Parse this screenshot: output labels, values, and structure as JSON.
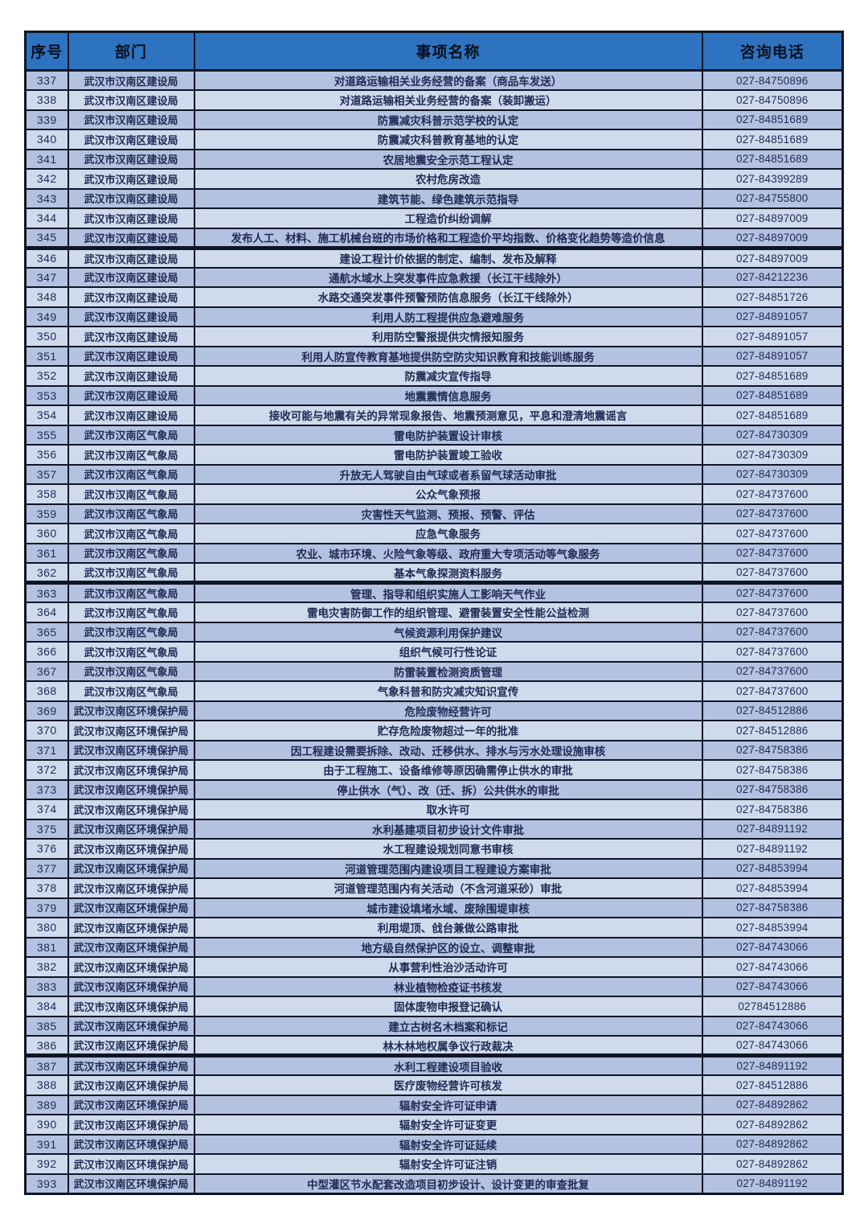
{
  "colors": {
    "header_bg": "#2e73c0",
    "header_text": "#0a0f1e",
    "row_odd": "#b4c2e1",
    "row_even": "#cfdaed",
    "border": "#0e1626",
    "cell_text": "#1e2a52"
  },
  "table": {
    "columns": [
      "序号",
      "部门",
      "事项名称",
      "咨询电话"
    ],
    "thick_border_after": [
      "345",
      "362",
      "386"
    ],
    "rows": [
      {
        "no": "337",
        "dept": "武汉市汉南区建设局",
        "item": "对道路运输相关业务经营的备案（商品车发送）",
        "phone": "027-84750896"
      },
      {
        "no": "338",
        "dept": "武汉市汉南区建设局",
        "item": "对道路运输相关业务经营的备案（装卸搬运）",
        "phone": "027-84750896"
      },
      {
        "no": "339",
        "dept": "武汉市汉南区建设局",
        "item": "防震减灾科普示范学校的认定",
        "phone": "027-84851689"
      },
      {
        "no": "340",
        "dept": "武汉市汉南区建设局",
        "item": "防震减灾科普教育基地的认定",
        "phone": "027-84851689"
      },
      {
        "no": "341",
        "dept": "武汉市汉南区建设局",
        "item": "农居地震安全示范工程认定",
        "phone": "027-84851689"
      },
      {
        "no": "342",
        "dept": "武汉市汉南区建设局",
        "item": "农村危房改造",
        "phone": "027-84399289"
      },
      {
        "no": "343",
        "dept": "武汉市汉南区建设局",
        "item": "建筑节能、绿色建筑示范指导",
        "phone": "027-84755800"
      },
      {
        "no": "344",
        "dept": "武汉市汉南区建设局",
        "item": "工程造价纠纷调解",
        "phone": "027-84897009"
      },
      {
        "no": "345",
        "dept": "武汉市汉南区建设局",
        "item": "发布人工、材料、施工机械台班的市场价格和工程造价平均指数、价格变化趋势等造价信息",
        "phone": "027-84897009"
      },
      {
        "no": "346",
        "dept": "武汉市汉南区建设局",
        "item": "建设工程计价依据的制定、编制、发布及解释",
        "phone": "027-84897009"
      },
      {
        "no": "347",
        "dept": "武汉市汉南区建设局",
        "item": "通航水域水上突发事件应急救援（长江干线除外）",
        "phone": "027-84212236"
      },
      {
        "no": "348",
        "dept": "武汉市汉南区建设局",
        "item": "水路交通突发事件预警预防信息服务（长江干线除外）",
        "phone": "027-84851726"
      },
      {
        "no": "349",
        "dept": "武汉市汉南区建设局",
        "item": "利用人防工程提供应急避难服务",
        "phone": "027-84891057"
      },
      {
        "no": "350",
        "dept": "武汉市汉南区建设局",
        "item": "利用防空警报提供灾情报知服务",
        "phone": "027-84891057"
      },
      {
        "no": "351",
        "dept": "武汉市汉南区建设局",
        "item": "利用人防宣传教育基地提供防空防灾知识教育和技能训练服务",
        "phone": "027-84891057"
      },
      {
        "no": "352",
        "dept": "武汉市汉南区建设局",
        "item": "防震减灾宣传指导",
        "phone": "027-84851689"
      },
      {
        "no": "353",
        "dept": "武汉市汉南区建设局",
        "item": "地震震情信息服务",
        "phone": "027-84851689"
      },
      {
        "no": "354",
        "dept": "武汉市汉南区建设局",
        "item": "接收可能与地震有关的异常现象报告、地震预测意见，平息和澄清地震谣言",
        "phone": "027-84851689"
      },
      {
        "no": "355",
        "dept": "武汉市汉南区气象局",
        "item": "雷电防护装置设计审核",
        "phone": "027-84730309"
      },
      {
        "no": "356",
        "dept": "武汉市汉南区气象局",
        "item": "雷电防护装置竣工验收",
        "phone": "027-84730309"
      },
      {
        "no": "357",
        "dept": "武汉市汉南区气象局",
        "item": "升放无人驾驶自由气球或者系留气球活动审批",
        "phone": "027-84730309"
      },
      {
        "no": "358",
        "dept": "武汉市汉南区气象局",
        "item": "公众气象预报",
        "phone": "027-84737600"
      },
      {
        "no": "359",
        "dept": "武汉市汉南区气象局",
        "item": "灾害性天气监测、预报、预警、评估",
        "phone": "027-84737600"
      },
      {
        "no": "360",
        "dept": "武汉市汉南区气象局",
        "item": "应急气象服务",
        "phone": "027-84737600"
      },
      {
        "no": "361",
        "dept": "武汉市汉南区气象局",
        "item": "农业、城市环境、火险气象等级、政府重大专项活动等气象服务",
        "phone": "027-84737600"
      },
      {
        "no": "362",
        "dept": "武汉市汉南区气象局",
        "item": "基本气象探测资料服务",
        "phone": "027-84737600"
      },
      {
        "no": "363",
        "dept": "武汉市汉南区气象局",
        "item": "管理、指导和组织实施人工影响天气作业",
        "phone": "027-84737600"
      },
      {
        "no": "364",
        "dept": "武汉市汉南区气象局",
        "item": "雷电灾害防御工作的组织管理、避雷装置安全性能公益检测",
        "phone": "027-84737600"
      },
      {
        "no": "365",
        "dept": "武汉市汉南区气象局",
        "item": "气候资源利用保护建议",
        "phone": "027-84737600"
      },
      {
        "no": "366",
        "dept": "武汉市汉南区气象局",
        "item": "组织气候可行性论证",
        "phone": "027-84737600"
      },
      {
        "no": "367",
        "dept": "武汉市汉南区气象局",
        "item": "防雷装置检测资质管理",
        "phone": "027-84737600"
      },
      {
        "no": "368",
        "dept": "武汉市汉南区气象局",
        "item": "气象科普和防灾减灾知识宣传",
        "phone": "027-84737600"
      },
      {
        "no": "369",
        "dept": "武汉市汉南区环境保护局",
        "item": "危险废物经营许可",
        "phone": "027-84512886"
      },
      {
        "no": "370",
        "dept": "武汉市汉南区环境保护局",
        "item": "贮存危险废物超过一年的批准",
        "phone": "027-84512886"
      },
      {
        "no": "371",
        "dept": "武汉市汉南区环境保护局",
        "item": "因工程建设需要拆除、改动、迁移供水、排水与污水处理设施审核",
        "phone": "027-84758386"
      },
      {
        "no": "372",
        "dept": "武汉市汉南区环境保护局",
        "item": "由于工程施工、设备维修等原因确需停止供水的审批",
        "phone": "027-84758386"
      },
      {
        "no": "373",
        "dept": "武汉市汉南区环境保护局",
        "item": "停止供水（气）、改（迁、拆）公共供水的审批",
        "phone": "027-84758386"
      },
      {
        "no": "374",
        "dept": "武汉市汉南区环境保护局",
        "item": "取水许可",
        "phone": "027-84758386"
      },
      {
        "no": "375",
        "dept": "武汉市汉南区环境保护局",
        "item": "水利基建项目初步设计文件审批",
        "phone": "027-84891192"
      },
      {
        "no": "376",
        "dept": "武汉市汉南区环境保护局",
        "item": "水工程建设规划同意书审核",
        "phone": "027-84891192"
      },
      {
        "no": "377",
        "dept": "武汉市汉南区环境保护局",
        "item": "河道管理范围内建设项目工程建设方案审批",
        "phone": "027-84853994"
      },
      {
        "no": "378",
        "dept": "武汉市汉南区环境保护局",
        "item": "河道管理范围内有关活动（不含河道采砂）审批",
        "phone": "027-84853994"
      },
      {
        "no": "379",
        "dept": "武汉市汉南区环境保护局",
        "item": "城市建设填堵水域、废除围堤审核",
        "phone": "027-84758386"
      },
      {
        "no": "380",
        "dept": "武汉市汉南区环境保护局",
        "item": "利用堤顶、戗台兼做公路审批",
        "phone": "027-84853994"
      },
      {
        "no": "381",
        "dept": "武汉市汉南区环境保护局",
        "item": "地方级自然保护区的设立、调整审批",
        "phone": "027-84743066"
      },
      {
        "no": "382",
        "dept": "武汉市汉南区环境保护局",
        "item": "从事营利性治沙活动许可",
        "phone": "027-84743066"
      },
      {
        "no": "383",
        "dept": "武汉市汉南区环境保护局",
        "item": "林业植物检疫证书核发",
        "phone": "027-84743066"
      },
      {
        "no": "384",
        "dept": "武汉市汉南区环境保护局",
        "item": "固体废物申报登记确认",
        "phone": "02784512886"
      },
      {
        "no": "385",
        "dept": "武汉市汉南区环境保护局",
        "item": "建立古树名木档案和标记",
        "phone": "027-84743066"
      },
      {
        "no": "386",
        "dept": "武汉市汉南区环境保护局",
        "item": "林木林地权属争议行政裁决",
        "phone": "027-84743066"
      },
      {
        "no": "387",
        "dept": "武汉市汉南区环境保护局",
        "item": "水利工程建设项目验收",
        "phone": "027-84891192"
      },
      {
        "no": "388",
        "dept": "武汉市汉南区环境保护局",
        "item": "医疗废物经营许可核发",
        "phone": "027-84512886"
      },
      {
        "no": "389",
        "dept": "武汉市汉南区环境保护局",
        "item": "辐射安全许可证申请",
        "phone": "027-84892862"
      },
      {
        "no": "390",
        "dept": "武汉市汉南区环境保护局",
        "item": "辐射安全许可证变更",
        "phone": "027-84892862"
      },
      {
        "no": "391",
        "dept": "武汉市汉南区环境保护局",
        "item": "辐射安全许可证延续",
        "phone": "027-84892862"
      },
      {
        "no": "392",
        "dept": "武汉市汉南区环境保护局",
        "item": "辐射安全许可证注销",
        "phone": "027-84892862"
      },
      {
        "no": "393",
        "dept": "武汉市汉南区环境保护局",
        "item": "中型灌区节水配套改造项目初步设计、设计变更的审查批复",
        "phone": "027-84891192"
      }
    ]
  }
}
